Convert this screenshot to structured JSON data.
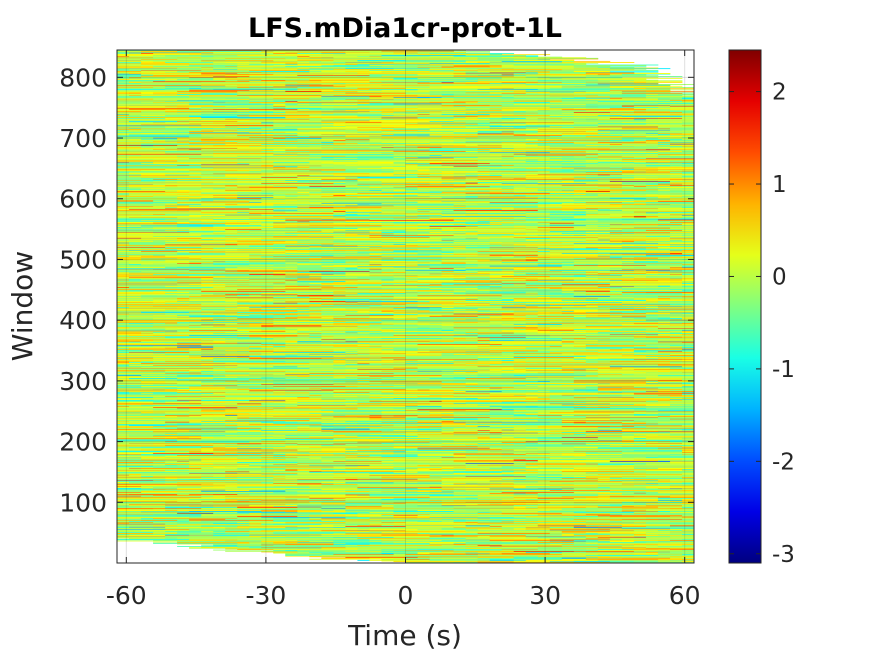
{
  "chart_data": {
    "type": "heatmap",
    "title": "LFS.mDia1cr-prot-1L",
    "xlabel": "Time (s)",
    "ylabel": "Window",
    "xlim": [
      -62,
      62
    ],
    "ylim": [
      0,
      845
    ],
    "xticks": [
      -60,
      -30,
      0,
      30,
      60
    ],
    "xtick_labels": [
      "-60",
      "-30",
      "0",
      "30",
      "60"
    ],
    "yticks": [
      100,
      200,
      300,
      400,
      500,
      600,
      700,
      800
    ],
    "ytick_labels": [
      "100",
      "200",
      "300",
      "400",
      "500",
      "600",
      "700",
      "800"
    ],
    "colormap": "jet",
    "clim": [
      -3.1,
      2.45
    ],
    "colorbar_ticks": [
      2,
      1,
      0,
      -1,
      -2,
      -3
    ],
    "colorbar_tick_labels": [
      "2",
      "1",
      "0",
      "-1",
      "-2",
      "-3"
    ],
    "grid": true,
    "data_extent": {
      "top_boundary": [
        [
          -62,
          845
        ],
        [
          10,
          845
        ],
        [
          33,
          835
        ],
        [
          50,
          818
        ],
        [
          53,
          804
        ],
        [
          60,
          770
        ],
        [
          62,
          770
        ]
      ],
      "bottom_boundary": [
        [
          -62,
          43
        ],
        [
          -20,
          10
        ],
        [
          0,
          0
        ],
        [
          62,
          0
        ]
      ]
    },
    "value_distribution": {
      "mean": 0.05,
      "std": 0.55,
      "min": -3.1,
      "max": 2.45
    }
  }
}
